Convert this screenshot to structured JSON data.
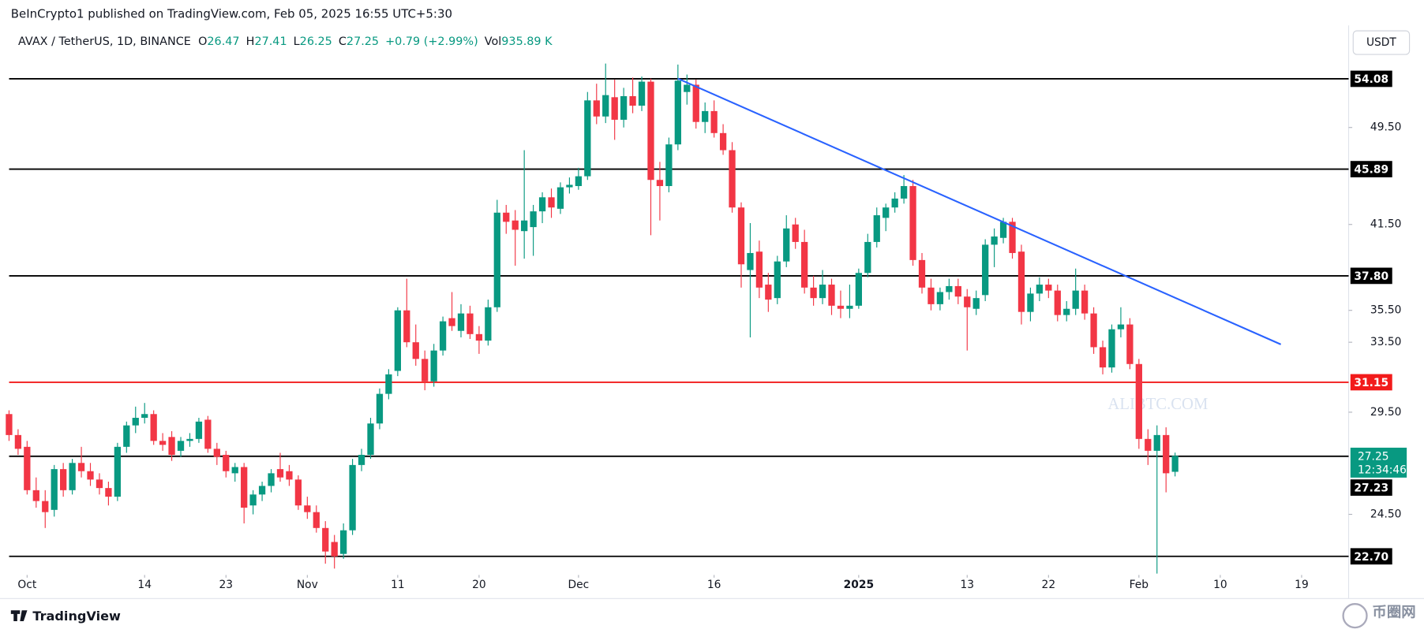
{
  "header": {
    "published": "BeInCrypto1 published on TradingView.com, Feb 05, 2025 16:55 UTC+5:30",
    "footer": "TradingView",
    "brand": "币圈网"
  },
  "chart_data": {
    "type": "candlestick",
    "symbol": "AVAX / TetherUS, 1D, BINANCE",
    "ohlc_legend": [
      [
        "O",
        "26.47"
      ],
      [
        "H",
        "27.41"
      ],
      [
        "L",
        "26.25"
      ],
      [
        "C",
        "27.25"
      ]
    ],
    "change": "+0.79 (+2.99%)",
    "volume": [
      "Vol",
      "935.89 K"
    ],
    "currency": "USDT",
    "watermark": "ALIBTC.COM",
    "log_scale": true,
    "up_color": "#089981",
    "down_color": "#f23645",
    "ylim": [
      21.8,
      57
    ],
    "yticks": [
      {
        "value": 49.5,
        "label": "49.50"
      },
      {
        "value": 41.5,
        "label": "41.50"
      },
      {
        "value": 35.5,
        "label": "35.50"
      },
      {
        "value": 33.5,
        "label": "33.50"
      },
      {
        "value": 29.5,
        "label": "29.50"
      },
      {
        "value": 24.5,
        "label": "24.50"
      }
    ],
    "xlim": [
      -1,
      148.2
    ],
    "xticks": [
      {
        "value": 2,
        "label": "Oct"
      },
      {
        "value": 15,
        "label": "14"
      },
      {
        "value": 24,
        "label": "23"
      },
      {
        "value": 33,
        "label": "Nov"
      },
      {
        "value": 43,
        "label": "11"
      },
      {
        "value": 52,
        "label": "20"
      },
      {
        "value": 63,
        "label": "Dec"
      },
      {
        "value": 78,
        "label": "16"
      },
      {
        "value": 94,
        "label": "2025"
      },
      {
        "value": 106,
        "label": "13"
      },
      {
        "value": 115,
        "label": "22"
      },
      {
        "value": 125,
        "label": "Feb"
      },
      {
        "value": 134,
        "label": "10"
      },
      {
        "value": 143,
        "label": "19"
      }
    ],
    "levels": [
      {
        "value": 54.08,
        "label": "54.08",
        "color": "#000000"
      },
      {
        "value": 45.89,
        "label": "45.89",
        "color": "#000000"
      },
      {
        "value": 37.8,
        "label": "37.80",
        "color": "#000000"
      },
      {
        "value": 31.15,
        "label": "31.15",
        "color": "#f21b1b"
      },
      {
        "value": 27.23,
        "label": "27.23",
        "color": "#000000"
      },
      {
        "value": 22.7,
        "label": "22.70",
        "color": "#000000"
      }
    ],
    "trendline": {
      "color": "#2962ff",
      "points": [
        [
          74,
          54.1
        ],
        [
          140.7,
          33.37
        ]
      ]
    },
    "price_label": {
      "value": 27.25,
      "label": "27.25",
      "countdown": "12:34:46"
    },
    "ohlc": [
      [
        29.4,
        29.6,
        28.0,
        28.3
      ],
      [
        28.3,
        28.6,
        27.3,
        27.6
      ],
      [
        27.7,
        28.0,
        25.4,
        25.6
      ],
      [
        25.6,
        26.2,
        24.8,
        25.1
      ],
      [
        25.1,
        25.6,
        23.9,
        24.6
      ],
      [
        24.7,
        26.8,
        24.4,
        26.6
      ],
      [
        26.6,
        26.9,
        25.3,
        25.6
      ],
      [
        25.6,
        27.1,
        25.4,
        26.9
      ],
      [
        26.9,
        27.7,
        26.2,
        26.5
      ],
      [
        26.5,
        26.9,
        25.8,
        26.1
      ],
      [
        26.1,
        26.4,
        25.4,
        25.7
      ],
      [
        25.7,
        26.0,
        24.9,
        25.3
      ],
      [
        25.3,
        27.9,
        25.1,
        27.7
      ],
      [
        27.7,
        29.0,
        27.4,
        28.8
      ],
      [
        28.8,
        29.8,
        28.4,
        29.2
      ],
      [
        29.2,
        30.0,
        28.9,
        29.4
      ],
      [
        29.4,
        29.6,
        27.8,
        28.0
      ],
      [
        28.0,
        28.4,
        27.5,
        27.8
      ],
      [
        28.2,
        28.5,
        27.0,
        27.3
      ],
      [
        27.5,
        28.2,
        27.2,
        28.0
      ],
      [
        28.0,
        28.4,
        27.7,
        28.1
      ],
      [
        28.1,
        29.2,
        27.9,
        29.0
      ],
      [
        29.1,
        29.3,
        27.4,
        27.6
      ],
      [
        27.6,
        27.9,
        26.8,
        27.2
      ],
      [
        27.3,
        27.5,
        26.2,
        26.5
      ],
      [
        26.4,
        26.9,
        26.0,
        26.7
      ],
      [
        26.7,
        26.9,
        24.1,
        24.8
      ],
      [
        24.9,
        25.6,
        24.5,
        25.4
      ],
      [
        25.4,
        26.0,
        25.1,
        25.8
      ],
      [
        25.8,
        26.6,
        25.5,
        26.4
      ],
      [
        26.6,
        27.4,
        26.0,
        26.2
      ],
      [
        26.5,
        26.8,
        25.8,
        26.1
      ],
      [
        26.1,
        26.3,
        24.7,
        24.9
      ],
      [
        24.9,
        25.3,
        24.3,
        24.6
      ],
      [
        24.6,
        24.9,
        23.7,
        23.9
      ],
      [
        23.9,
        24.2,
        22.4,
        22.9
      ],
      [
        23.3,
        23.6,
        22.2,
        22.7
      ],
      [
        22.8,
        24.1,
        22.6,
        23.8
      ],
      [
        23.8,
        27.1,
        23.6,
        26.8
      ],
      [
        26.8,
        27.6,
        26.5,
        27.3
      ],
      [
        27.3,
        29.2,
        27.1,
        28.9
      ],
      [
        28.9,
        30.8,
        28.6,
        30.5
      ],
      [
        30.5,
        31.9,
        30.2,
        31.6
      ],
      [
        31.8,
        35.7,
        31.5,
        35.5
      ],
      [
        35.5,
        37.6,
        33.2,
        33.5
      ],
      [
        33.5,
        34.6,
        32.1,
        32.5
      ],
      [
        32.5,
        33.0,
        30.7,
        31.2
      ],
      [
        31.2,
        33.4,
        30.9,
        33.0
      ],
      [
        33.0,
        35.1,
        32.7,
        34.8
      ],
      [
        35.0,
        36.7,
        34.2,
        34.5
      ],
      [
        34.2,
        35.9,
        33.8,
        35.3
      ],
      [
        35.3,
        35.8,
        33.7,
        34.0
      ],
      [
        34.0,
        34.5,
        32.8,
        33.6
      ],
      [
        33.6,
        36.2,
        33.3,
        35.7
      ],
      [
        35.7,
        43.4,
        35.4,
        42.4
      ],
      [
        42.4,
        43.0,
        40.8,
        41.7
      ],
      [
        41.8,
        42.6,
        38.5,
        41.1
      ],
      [
        41.0,
        47.5,
        39.0,
        41.8
      ],
      [
        41.3,
        43.0,
        39.2,
        42.5
      ],
      [
        42.5,
        44.0,
        41.6,
        43.6
      ],
      [
        43.6,
        44.3,
        42.0,
        42.8
      ],
      [
        42.7,
        44.8,
        42.3,
        44.4
      ],
      [
        44.4,
        45.2,
        43.9,
        44.6
      ],
      [
        44.5,
        46.0,
        44.2,
        45.3
      ],
      [
        45.3,
        52.8,
        45.0,
        52.0
      ],
      [
        52.0,
        53.6,
        49.8,
        50.5
      ],
      [
        50.5,
        55.6,
        49.9,
        52.5
      ],
      [
        52.3,
        54.0,
        48.4,
        50.2
      ],
      [
        50.2,
        53.2,
        49.5,
        52.4
      ],
      [
        52.4,
        54.2,
        50.8,
        51.5
      ],
      [
        51.5,
        54.3,
        51.0,
        53.8
      ],
      [
        53.8,
        54.1,
        40.7,
        45.0
      ],
      [
        45.0,
        46.5,
        41.8,
        44.5
      ],
      [
        44.5,
        48.6,
        44.0,
        48.0
      ],
      [
        48.0,
        55.5,
        47.5,
        53.9
      ],
      [
        52.8,
        54.5,
        51.6,
        53.5
      ],
      [
        53.5,
        54.0,
        49.4,
        50.0
      ],
      [
        50.0,
        51.8,
        49.0,
        51.0
      ],
      [
        51.0,
        52.0,
        48.6,
        49.0
      ],
      [
        49.0,
        49.8,
        47.1,
        47.5
      ],
      [
        47.5,
        48.2,
        42.4,
        42.8
      ],
      [
        42.8,
        43.2,
        37.0,
        38.6
      ],
      [
        38.2,
        41.6,
        33.8,
        39.4
      ],
      [
        39.5,
        40.3,
        36.3,
        37.0
      ],
      [
        37.2,
        38.0,
        35.4,
        36.2
      ],
      [
        36.3,
        39.2,
        35.9,
        38.8
      ],
      [
        38.8,
        42.2,
        38.4,
        41.2
      ],
      [
        41.5,
        42.0,
        39.7,
        40.2
      ],
      [
        40.2,
        41.1,
        36.6,
        37.0
      ],
      [
        37.0,
        37.8,
        35.8,
        36.3
      ],
      [
        36.3,
        38.2,
        35.9,
        37.2
      ],
      [
        37.2,
        37.6,
        35.2,
        35.8
      ],
      [
        35.8,
        36.8,
        35.0,
        35.6
      ],
      [
        35.6,
        37.2,
        35.0,
        35.8
      ],
      [
        35.8,
        38.3,
        35.6,
        38.0
      ],
      [
        38.0,
        40.8,
        37.7,
        40.2
      ],
      [
        40.2,
        42.8,
        39.8,
        42.2
      ],
      [
        42.0,
        43.1,
        41.0,
        42.8
      ],
      [
        42.8,
        44.0,
        42.4,
        43.5
      ],
      [
        43.5,
        45.4,
        43.1,
        44.5
      ],
      [
        44.5,
        45.0,
        38.5,
        38.9
      ],
      [
        38.9,
        39.4,
        36.6,
        37.0
      ],
      [
        37.0,
        37.6,
        35.5,
        35.9
      ],
      [
        35.9,
        37.0,
        35.5,
        36.7
      ],
      [
        36.7,
        37.6,
        36.2,
        37.1
      ],
      [
        37.1,
        37.6,
        35.9,
        36.4
      ],
      [
        36.4,
        36.9,
        33.0,
        35.7
      ],
      [
        35.6,
        36.8,
        35.2,
        36.3
      ],
      [
        36.5,
        40.4,
        36.1,
        40.0
      ],
      [
        40.0,
        41.2,
        38.4,
        40.6
      ],
      [
        40.5,
        42.0,
        40.1,
        41.7
      ],
      [
        41.7,
        42.0,
        39.0,
        39.4
      ],
      [
        39.5,
        40.0,
        34.6,
        35.4
      ],
      [
        35.4,
        37.0,
        34.8,
        36.6
      ],
      [
        36.6,
        37.7,
        36.1,
        37.2
      ],
      [
        37.2,
        37.6,
        36.3,
        36.8
      ],
      [
        36.8,
        37.2,
        34.8,
        35.2
      ],
      [
        35.2,
        36.1,
        34.8,
        35.6
      ],
      [
        35.6,
        38.3,
        35.2,
        36.8
      ],
      [
        36.8,
        37.2,
        34.9,
        35.3
      ],
      [
        35.3,
        35.7,
        32.8,
        33.2
      ],
      [
        33.2,
        33.6,
        31.6,
        32.0
      ],
      [
        32.0,
        34.6,
        31.7,
        34.3
      ],
      [
        34.3,
        35.7,
        33.8,
        34.6
      ],
      [
        34.6,
        35.0,
        31.9,
        32.2
      ],
      [
        32.2,
        32.5,
        27.6,
        28.1
      ],
      [
        28.1,
        28.6,
        26.8,
        27.5
      ],
      [
        27.5,
        28.8,
        22.0,
        28.3
      ],
      [
        28.3,
        28.7,
        25.5,
        26.4
      ],
      [
        26.47,
        27.41,
        26.25,
        27.25
      ]
    ]
  }
}
